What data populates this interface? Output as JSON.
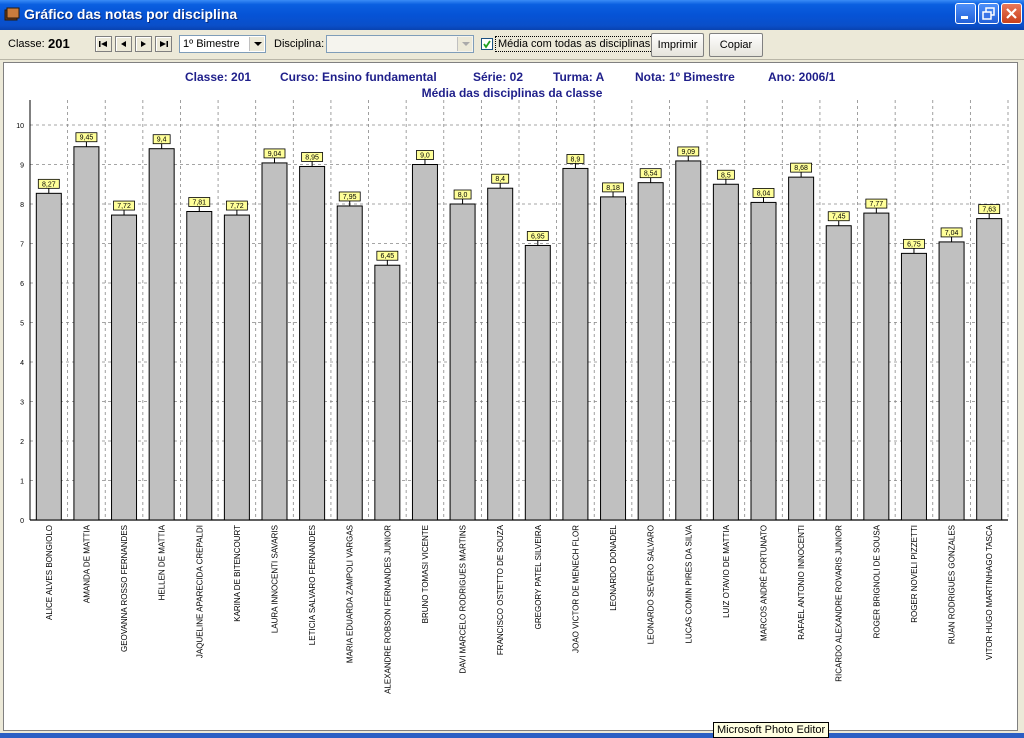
{
  "window": {
    "title": "Gráfico das notas por disciplina"
  },
  "toolbar": {
    "classe_label": "Classe:",
    "classe_value": "201",
    "bimestre_value": "1º Bimestre",
    "disciplina_label": "Disciplina:",
    "disciplina_value": "",
    "media_checked": true,
    "media_label": "Média com todas as disciplinas",
    "imprimir_label": "Imprimir",
    "copiar_label": "Copiar"
  },
  "chart_header": {
    "classe": "Classe: 201",
    "curso": "Curso: Ensino fundamental",
    "serie": "Série: 02",
    "turma": "Turma: A",
    "nota": "Nota: 1º Bimestre",
    "ano": "Ano: 2006/1"
  },
  "tooltip": "Microsoft Photo Editor",
  "colors": {
    "bar_fill": "#c0c0c0",
    "label_fill": "#ffff99",
    "title_color": "#1f1f8a",
    "titlebar": "#0653d6"
  },
  "chart_data": {
    "type": "bar",
    "title": "Média das disciplinas da classe",
    "xlabel": "",
    "ylabel": "",
    "ylim": [
      0,
      10
    ],
    "yticks": [
      "0",
      "1",
      "2",
      "3",
      "4",
      "5",
      "6",
      "7",
      "8",
      "9",
      "10"
    ],
    "grid": true,
    "categories": [
      "ALICE ALVES BONGIOLO",
      "AMANDA DE MATTIA",
      "GEOVANNA ROSSO FERNANDES",
      "HELLEN DE MATTIA",
      "JAQUELINE APARECIDA CREPALDI",
      "KARINA DE BITENCOURT",
      "LAURA INNOCENTI SAVARIS",
      "LETICIA SALVARO FERNANDES",
      "MARIA EDUARDA ZAMPOLI VARGAS",
      "ALEXANDRE ROBSON FERNANDES JUNIOR",
      "BRUNO TOMASI VICENTE",
      "DAVI MARCELO RODRIGUES MARTINS",
      "FRANCISCO OSTETTO DE SOUZA",
      "GREGORY PATEL SILVEIRA",
      "JOAO VICTOR DE MENECH FLOR",
      "LEONARDO DONADEL",
      "LEONARDO SEVERO SALVARO",
      "LUCAS COMIN PIRES DA SILVA",
      "LUIZ OTAVIO DE MATTIA",
      "MARCOS ANDRÉ FORTUNATO",
      "RAFAEL ANTONIO INNOCENTI",
      "RICARDO ALEXANDRE ROVARIS JUNIOR",
      "ROGER BRIGNOLI DE SOUSA",
      "ROGER NOVELI PIZZETTI",
      "RUAN RODRIGUES GONZALES",
      "VITOR HUGO MARTINHAGO TASCA"
    ],
    "values": [
      8.27,
      9.45,
      7.72,
      9.4,
      7.81,
      7.72,
      9.04,
      8.95,
      7.95,
      6.45,
      9.0,
      8.0,
      8.4,
      6.95,
      8.9,
      8.18,
      8.54,
      9.09,
      8.5,
      8.04,
      8.68,
      7.45,
      7.77,
      6.75,
      7.04,
      7.63
    ],
    "value_labels": [
      "8,27",
      "9,45",
      "7,72",
      "9,4",
      "7,81",
      "7,72",
      "9,04",
      "8,95",
      "7,95",
      "6,45",
      "9,0",
      "8,0",
      "8,4",
      "6,95",
      "8,9",
      "8,18",
      "8,54",
      "9,09",
      "8,5",
      "8,04",
      "8,68",
      "7,45",
      "7,77",
      "6,75",
      "7,04",
      "7,63"
    ]
  }
}
